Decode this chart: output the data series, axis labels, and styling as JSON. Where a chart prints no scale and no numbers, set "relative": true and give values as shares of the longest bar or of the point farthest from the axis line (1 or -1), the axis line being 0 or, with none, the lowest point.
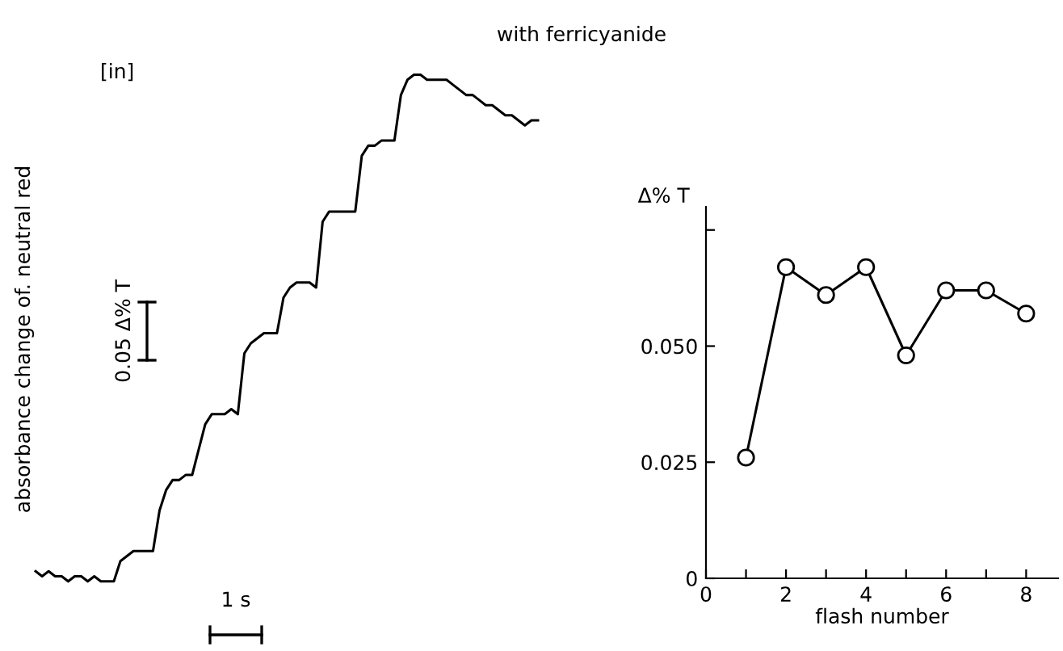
{
  "chart_data": [
    {
      "type": "line",
      "title": "with ferricyanide",
      "ylabel": "absorbance change of. neutral red",
      "relative": true,
      "color": "#000000",
      "marker": "none",
      "line_style": "solid",
      "annotations": [
        "[in]",
        "0.05 Δ% T",
        "1 s"
      ],
      "categories": [
        null,
        null,
        null,
        null,
        null,
        null,
        null,
        null,
        null,
        null,
        null,
        null,
        null,
        null,
        null,
        null,
        null,
        null,
        null,
        null,
        null,
        null,
        null,
        null,
        null,
        null,
        null,
        null,
        null,
        null,
        null,
        null,
        null,
        null,
        null,
        null,
        null,
        null,
        null,
        null,
        null,
        null,
        null,
        null,
        null,
        null,
        null,
        null,
        null,
        null,
        null,
        null,
        null,
        null,
        null,
        null,
        null,
        null,
        null,
        null,
        null,
        null,
        null,
        null,
        null,
        null,
        null,
        null,
        null,
        null,
        null,
        null,
        null,
        null,
        null,
        null,
        null,
        null
      ],
      "values": [
        0.02,
        0.01,
        0.02,
        0.01,
        0.01,
        0.0,
        0.01,
        0.01,
        0.0,
        0.01,
        0.0,
        0.0,
        0.0,
        0.04,
        0.05,
        0.06,
        0.06,
        0.06,
        0.06,
        0.14,
        0.18,
        0.2,
        0.2,
        0.21,
        0.21,
        0.26,
        0.31,
        0.33,
        0.33,
        0.33,
        0.34,
        0.33,
        0.45,
        0.47,
        0.48,
        0.49,
        0.49,
        0.49,
        0.56,
        0.58,
        0.59,
        0.59,
        0.59,
        0.58,
        0.71,
        0.73,
        0.73,
        0.73,
        0.73,
        0.73,
        0.84,
        0.86,
        0.86,
        0.87,
        0.87,
        0.87,
        0.96,
        0.99,
        1.0,
        1.0,
        0.99,
        0.99,
        0.99,
        0.99,
        0.98,
        0.97,
        0.96,
        0.96,
        0.95,
        0.94,
        0.94,
        0.93,
        0.92,
        0.92,
        0.91,
        0.9,
        0.91,
        0.91
      ]
    },
    {
      "type": "line",
      "xlabel": "flash number",
      "ylabel": "Δ% T",
      "color": "#000000",
      "marker": "circle",
      "line_style": "solid",
      "grid": false,
      "x": [
        1,
        2,
        3,
        4,
        5,
        6,
        7,
        8
      ],
      "values": [
        0.026,
        0.067,
        0.061,
        0.067,
        0.048,
        0.062,
        0.062,
        0.057
      ],
      "xlim": [
        0,
        8.8
      ],
      "ylim": [
        0,
        0.08
      ],
      "xticks": [
        0,
        {
          "value": 1,
          "label": null
        },
        2,
        {
          "value": 3,
          "label": null
        },
        4,
        {
          "value": 5,
          "label": null
        },
        6,
        {
          "value": 7,
          "label": null
        },
        8
      ],
      "yticks": [
        0,
        0.025,
        {
          "value": 0.05,
          "label": "0.050"
        },
        {
          "value": 0.075,
          "label": null
        }
      ]
    }
  ]
}
